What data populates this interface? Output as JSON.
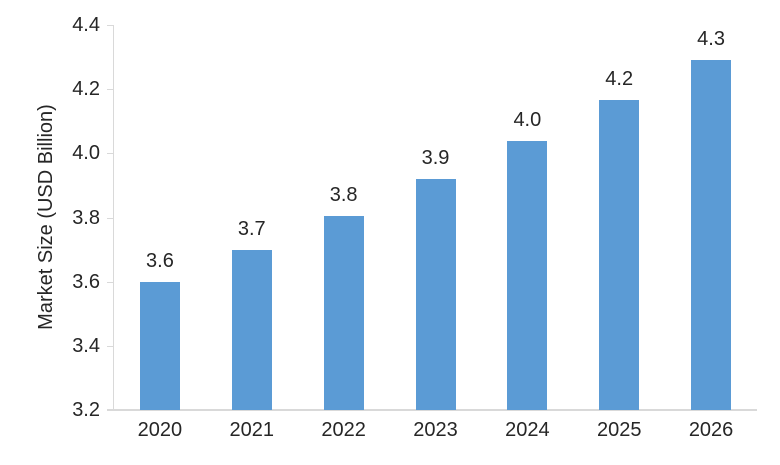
{
  "chart_data": {
    "type": "bar",
    "categories": [
      "2020",
      "2021",
      "2022",
      "2023",
      "2024",
      "2025",
      "2026"
    ],
    "values": [
      3.6,
      3.7,
      3.8,
      3.9,
      4.0,
      4.2,
      4.3
    ],
    "bar_labels": [
      "3.6",
      "3.7",
      "3.8",
      "3.9",
      "4.0",
      "4.2",
      "4.3"
    ],
    "values_precise_estimate": [
      3.6,
      3.7,
      3.805,
      3.92,
      4.04,
      4.165,
      4.29
    ],
    "title": "",
    "xlabel": "",
    "ylabel": "Market Size (USD Billion)",
    "ylim": [
      3.2,
      4.4
    ],
    "ytick_step": 0.2,
    "ytick_labels": [
      "3.2",
      "3.4",
      "3.6",
      "3.8",
      "4.0",
      "4.2",
      "4.4"
    ],
    "grid": false,
    "legend": false,
    "data_labels_shown": true
  },
  "colors": {
    "bar": "#5B9BD5",
    "axis": "#D9D9D9",
    "text": "#262626",
    "background": "#FFFFFF"
  }
}
